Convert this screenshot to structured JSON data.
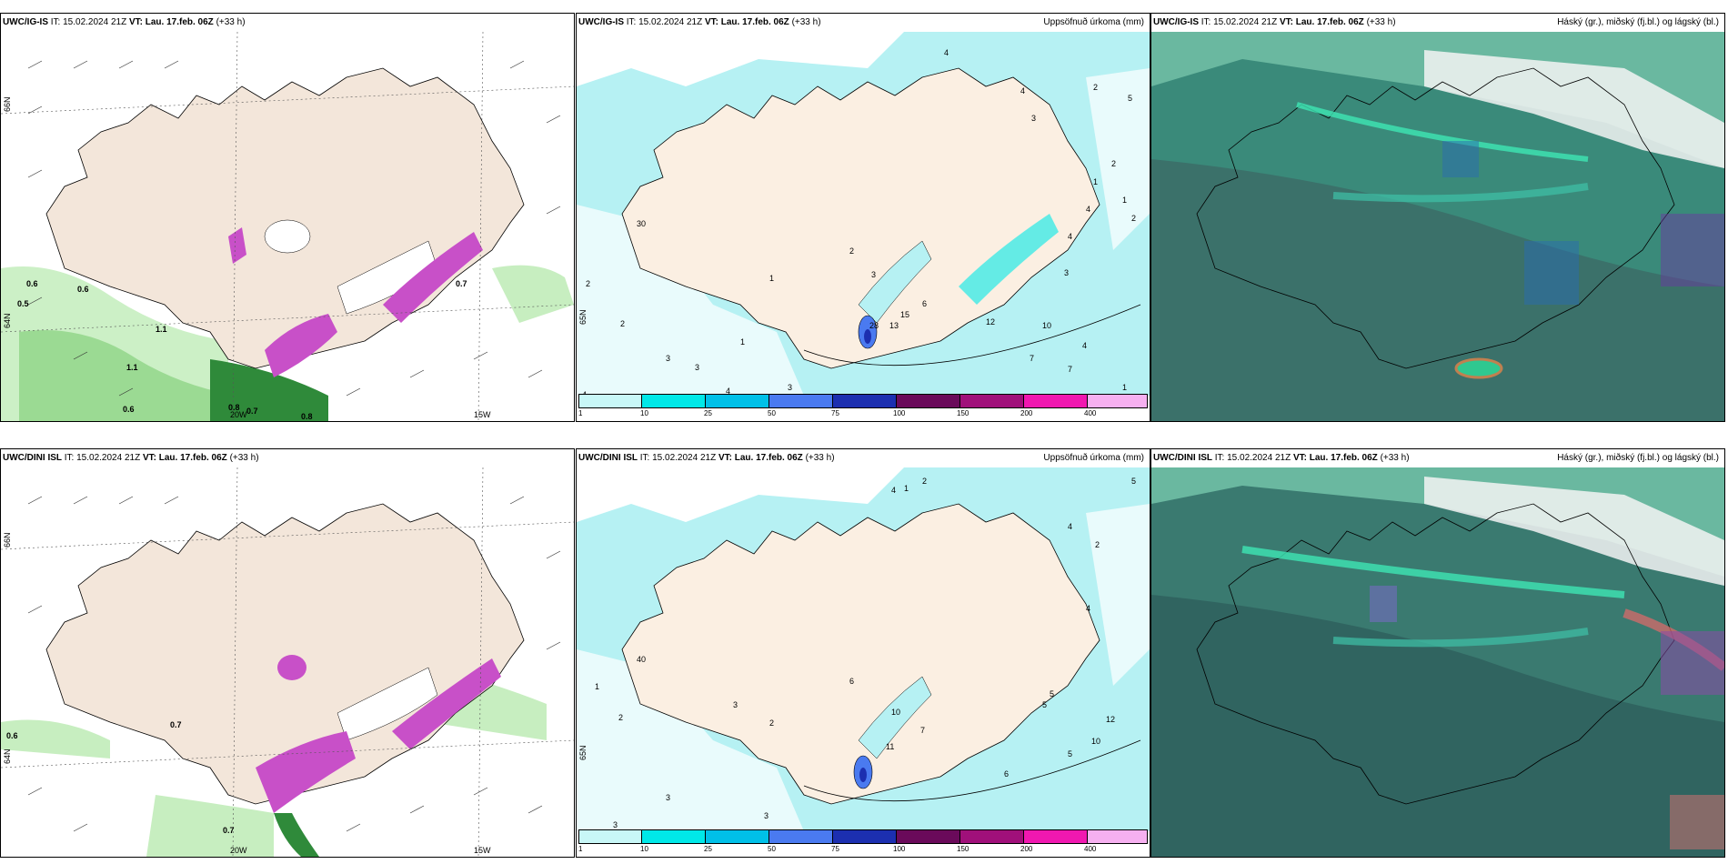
{
  "rows": [
    {
      "model": "UWC/IG-IS",
      "it_label": "IT:",
      "it_value": "15.02.2024 21Z",
      "vt_label": "VT:",
      "vt_value": "Lau. 17.feb. 06Z",
      "lead": "(+33 h)",
      "wind_values": [
        "0.6",
        "0.6",
        "0.5",
        "1.1",
        "0.6",
        "0.8",
        "0.7",
        "0.8",
        "1.1",
        "0.7"
      ],
      "precip_numbers": [
        "4",
        "2",
        "5",
        "4",
        "3",
        "2",
        "4",
        "4",
        "2",
        "3",
        "1",
        "1",
        "30",
        "1",
        "2",
        "2",
        "1",
        "6",
        "2",
        "3",
        "28",
        "13",
        "15",
        "12",
        "10",
        "7",
        "4",
        "3",
        "3",
        "3",
        "4",
        "4",
        "1",
        "7"
      ]
    },
    {
      "model": "UWC/DINI ISL",
      "it_label": "IT:",
      "it_value": "15.02.2024 21Z",
      "vt_label": "VT:",
      "vt_value": "Lau. 17.feb. 06Z",
      "lead": "(+33 h)",
      "wind_values": [
        "0.6",
        "0.7",
        "0.7"
      ],
      "precip_numbers": [
        "4",
        "1",
        "2",
        "5",
        "40",
        "1",
        "2",
        "2",
        "3",
        "6",
        "10",
        "11",
        "12",
        "5",
        "7",
        "10",
        "4",
        "2",
        "4",
        "5",
        "5",
        "6",
        "3",
        "3",
        "3"
      ]
    }
  ],
  "precip_title": "Uppsöfnuð úrkoma (mm)",
  "cloud_title": "Háský (gr.), miðský (fj.bl.) og lágský (bl.)",
  "axis_labels": {
    "lat66": "66N",
    "lat65": "65N",
    "lat64": "64N",
    "lon20": "20W",
    "lon15": "15W"
  },
  "colorbar": {
    "ticks": [
      "1",
      "10",
      "25",
      "50",
      "75",
      "100",
      "150",
      "200",
      "400"
    ],
    "colors": [
      "#c8f7f7",
      "#00e8e8",
      "#00c0e8",
      "#4a7af0",
      "#1c2fb0",
      "#6a0a5a",
      "#a0107a",
      "#f018b0",
      "#f6b0f0"
    ]
  },
  "colors": {
    "land": "#f3e6da",
    "sea_precip": "#b6f1f3",
    "cloud_base": "#3a8a7a"
  }
}
